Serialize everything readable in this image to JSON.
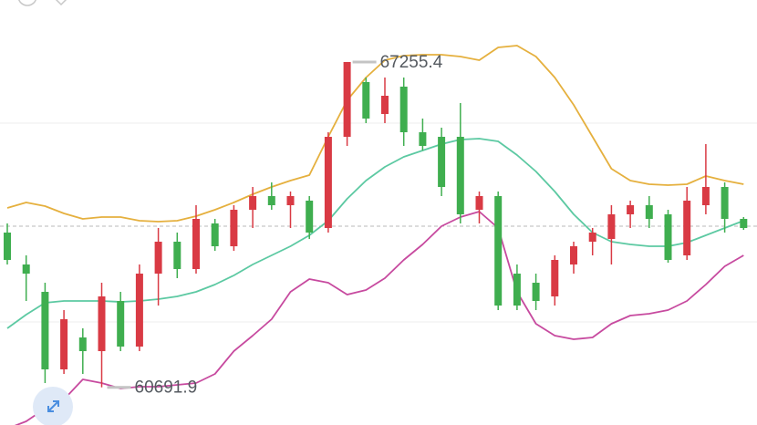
{
  "chart_data": {
    "type": "candlestick",
    "ylim": [
      59932,
      68506
    ],
    "up_color": "#d93a44",
    "down_color": "#3fae4f",
    "open": [
      63814,
      63170,
      62618,
      61054,
      61698,
      61422,
      62434,
      61514,
      62986,
      63630,
      63078,
      63998,
      63538,
      64274,
      64550,
      64366,
      64458,
      63906,
      65746,
      66850,
      66206,
      66758,
      65838,
      65746,
      65746,
      64274,
      64550,
      62986,
      62802,
      62526,
      63170,
      63630,
      63685,
      64182,
      64366,
      64182,
      63354,
      64366,
      64734,
      64090
    ],
    "high": [
      63998,
      63354,
      62802,
      62250,
      61882,
      62802,
      62618,
      63170,
      63906,
      63814,
      64366,
      64090,
      64366,
      64734,
      64826,
      64642,
      64550,
      65838,
      67255.4,
      66942,
      66942,
      66942,
      66114,
      65930,
      66427,
      64642,
      64642,
      63170,
      62986,
      63354,
      63630,
      63906,
      64366,
      64458,
      64550,
      64274,
      64734,
      65599,
      64826,
      64127
    ],
    "low": [
      63170,
      62434,
      60778,
      60962,
      60962,
      60691.9,
      61422,
      61422,
      62342,
      62894,
      62986,
      63446,
      63446,
      63906,
      64274,
      63906,
      63685,
      63814,
      65562,
      66022,
      66022,
      65562,
      65470,
      64550,
      63998,
      63998,
      62250,
      62250,
      62250,
      62342,
      62986,
      63354,
      63170,
      63906,
      63906,
      63207,
      63262,
      64182,
      63814,
      63869
    ],
    "close": [
      63262,
      62986,
      61054,
      62066,
      61422,
      62526,
      61514,
      62986,
      63630,
      63078,
      64090,
      63538,
      64274,
      64550,
      64366,
      64550,
      63814,
      65746,
      67255.4,
      66114,
      66574,
      65838,
      65562,
      64734,
      64182,
      64550,
      62342,
      62342,
      62434,
      63262,
      63538,
      63814,
      64182,
      64366,
      64090,
      63262,
      64458,
      64734,
      64090,
      63906
    ],
    "bands": {
      "upper": {
        "color": "#e5b03e",
        "values": [
          64311,
          64421,
          64348,
          64200,
          64090,
          64127,
          64127,
          64053,
          64035,
          64053,
          64145,
          64274,
          64421,
          64587,
          64734,
          64863,
          64973,
          65746,
          66482,
          66942,
          67292,
          67384,
          67402,
          67402,
          67365,
          67292,
          67549,
          67586,
          67365,
          66942,
          66390,
          65746,
          65102,
          64863,
          64789,
          64771,
          64789,
          64955,
          64863,
          64789
        ]
      },
      "middle": {
        "color": "#5cc9a2",
        "values": [
          61882,
          62158,
          62397,
          62434,
          62434,
          62434,
          62416,
          62434,
          62471,
          62526,
          62618,
          62765,
          62949,
          63170,
          63354,
          63538,
          63759,
          64053,
          64495,
          64863,
          65139,
          65341,
          65470,
          65599,
          65691,
          65709,
          65654,
          65378,
          65047,
          64642,
          64182,
          63814,
          63630,
          63575,
          63538,
          63538,
          63612,
          63759,
          63906,
          64053
        ]
      },
      "lower": {
        "color": "#c74a9f",
        "values": [
          59858,
          60005,
          60263,
          60447,
          60852,
          60778,
          60668,
          60704,
          60704,
          60741,
          60778,
          60962,
          61422,
          61735,
          62066,
          62618,
          62876,
          62802,
          62563,
          62655,
          62894,
          63262,
          63575,
          63943,
          64127,
          64237,
          63906,
          62618,
          61974,
          61735,
          61661,
          61698,
          61974,
          62140,
          62176,
          62250,
          62434,
          62765,
          63133,
          63354
        ]
      }
    },
    "annotations": {
      "high": 67255.4,
      "low": 60691.9
    }
  }
}
